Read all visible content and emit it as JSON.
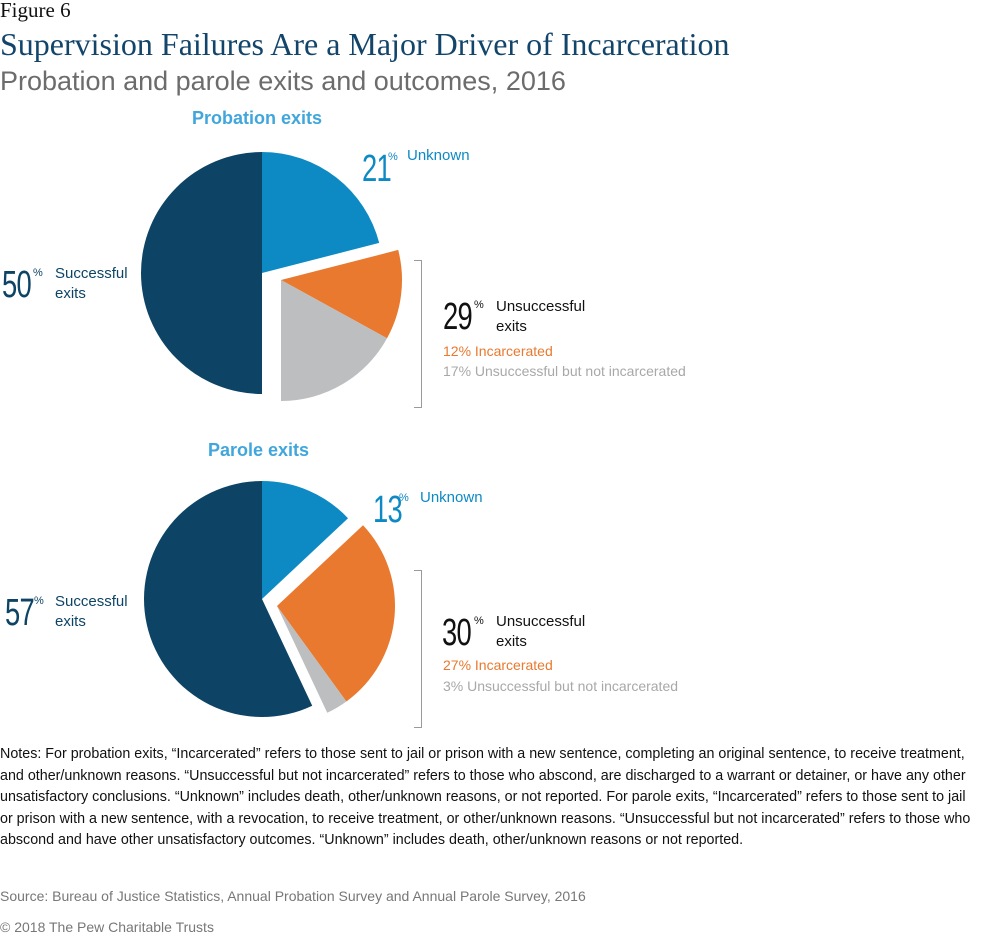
{
  "header": {
    "figure_label": "Figure 6",
    "title": "Supervision Failures Are a Major Driver of Incarceration",
    "subtitle": "Probation and parole exits and outcomes, 2016"
  },
  "colors": {
    "successful": "#0d4466",
    "unknown": "#0d8ac4",
    "incarcerated": "#e8792f",
    "unsuccessful_not_incarcerated": "#bcbec0",
    "pie_title": "#40a6dc"
  },
  "chart_data": [
    {
      "type": "pie",
      "title": "Probation exits",
      "slices": [
        {
          "label": "Unknown",
          "value": 21
        },
        {
          "label": "Incarcerated",
          "value": 12,
          "group": "Unsuccessful exits",
          "exploded": true
        },
        {
          "label": "Unsuccessful but not incarcerated",
          "value": 17,
          "group": "Unsuccessful exits",
          "exploded": true
        },
        {
          "label": "Successful exits",
          "value": 50
        }
      ],
      "callouts": {
        "unknown": {
          "num": "21",
          "pct": "%",
          "text": "Unknown"
        },
        "successful": {
          "num": "50",
          "pct": "%",
          "text": "Successful exits"
        },
        "unsuccessful": {
          "num": "29",
          "pct": "%",
          "text": "Unsuccessful exits"
        },
        "incarcerated_text": "12% Incarcerated",
        "not_incarcerated_text": "17% Unsuccessful but not incarcerated"
      }
    },
    {
      "type": "pie",
      "title": "Parole exits",
      "slices": [
        {
          "label": "Unknown",
          "value": 13
        },
        {
          "label": "Incarcerated",
          "value": 27,
          "group": "Unsuccessful exits",
          "exploded": true
        },
        {
          "label": "Unsuccessful but not incarcerated",
          "value": 3,
          "group": "Unsuccessful exits",
          "exploded": true
        },
        {
          "label": "Successful exits",
          "value": 57
        }
      ],
      "callouts": {
        "unknown": {
          "num": "13",
          "pct": "%",
          "text": "Unknown"
        },
        "successful": {
          "num": "57",
          "pct": "%",
          "text": "Successful exits"
        },
        "unsuccessful": {
          "num": "30",
          "pct": "%",
          "text": "Unsuccessful exits"
        },
        "incarcerated_text": "27% Incarcerated",
        "not_incarcerated_text": "3% Unsuccessful but not incarcerated"
      }
    }
  ],
  "notes": "Notes: For probation exits, “Incarcerated” refers to those sent to jail or prison with a new sentence, completing an original sentence, to receive treatment, and other/unknown reasons. “Unsuccessful but not incarcerated” refers to those who abscond, are discharged to a warrant or detainer, or have any other unsatisfactory conclusions. “Unknown” includes death, other/unknown reasons, or not reported. For parole exits, “Incarcerated” refers to those sent to jail or prison with a new sentence, with a revocation, to receive treatment, or other/unknown reasons. “Unsuccessful but not incarcerated” refers to those who abscond and have other unsatisfactory outcomes. “Unknown” includes death, other/unknown reasons or not reported.",
  "source": "Source: Bureau of Justice Statistics, Annual Probation Survey and Annual Parole Survey, 2016",
  "copyright": "© 2018 The Pew Charitable Trusts"
}
